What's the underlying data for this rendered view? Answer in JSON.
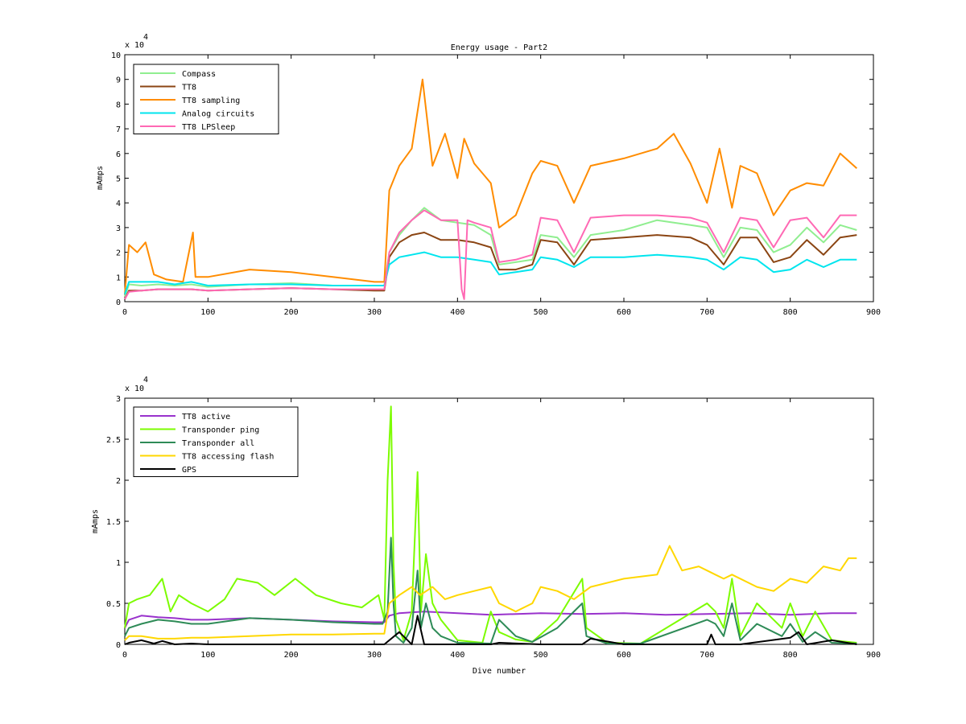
{
  "chart_data": [
    {
      "type": "line",
      "title": "Energy usage - Part2",
      "xlabel": "",
      "ylabel": "mAmps",
      "xlim": [
        0,
        900
      ],
      "ylim": [
        0,
        100000
      ],
      "y_exponent_label": "x 10",
      "y_exponent_power": "4",
      "xticks": [
        0,
        100,
        200,
        300,
        400,
        500,
        600,
        700,
        800,
        900
      ],
      "xtick_labels": [
        "0",
        "100",
        "200",
        "300",
        "400",
        "500",
        "600",
        "700",
        "800",
        "900"
      ],
      "yticks": [
        0,
        10000,
        20000,
        30000,
        40000,
        50000,
        60000,
        70000,
        80000,
        90000,
        100000
      ],
      "ytick_labels": [
        "0",
        "1",
        "2",
        "3",
        "4",
        "5",
        "6",
        "7",
        "8",
        "9",
        "10"
      ],
      "legend_position": "top-left",
      "grid": false,
      "series": [
        {
          "name": "Compass",
          "color": "#90ee90",
          "x": [
            0,
            5,
            20,
            40,
            60,
            80,
            100,
            150,
            200,
            250,
            300,
            312,
            318,
            330,
            345,
            360,
            380,
            400,
            420,
            440,
            450,
            470,
            490,
            500,
            520,
            540,
            560,
            600,
            640,
            680,
            700,
            720,
            740,
            760,
            780,
            800,
            820,
            840,
            860,
            880
          ],
          "y": [
            2000,
            7000,
            6500,
            7000,
            6500,
            7000,
            6000,
            7000,
            7500,
            6500,
            6500,
            6500,
            20000,
            27000,
            33000,
            38000,
            33000,
            32000,
            31000,
            27000,
            15000,
            16000,
            17000,
            27000,
            26000,
            18000,
            27000,
            29000,
            33000,
            31000,
            30000,
            18000,
            30000,
            29000,
            20000,
            23000,
            30000,
            24000,
            31000,
            29000
          ]
        },
        {
          "name": "TT8",
          "color": "#8b4513",
          "x": [
            0,
            5,
            20,
            40,
            60,
            80,
            100,
            150,
            200,
            250,
            300,
            312,
            318,
            330,
            345,
            360,
            380,
            400,
            420,
            440,
            450,
            470,
            490,
            500,
            520,
            540,
            560,
            600,
            640,
            680,
            700,
            720,
            740,
            760,
            780,
            800,
            820,
            840,
            860,
            880
          ],
          "y": [
            1000,
            4500,
            4500,
            5000,
            5000,
            5000,
            4500,
            5000,
            5500,
            5000,
            4500,
            4500,
            18000,
            24000,
            27000,
            28000,
            25000,
            25000,
            24000,
            22000,
            13000,
            13000,
            15000,
            25000,
            24000,
            15000,
            25000,
            26000,
            27000,
            26000,
            23000,
            15000,
            26000,
            26000,
            16000,
            18000,
            25000,
            19000,
            26000,
            27000
          ]
        },
        {
          "name": "TT8 sampling",
          "color": "#ff8c00",
          "x": [
            0,
            5,
            15,
            25,
            35,
            50,
            70,
            82,
            85,
            90,
            100,
            150,
            200,
            250,
            300,
            312,
            318,
            330,
            345,
            358,
            370,
            385,
            400,
            408,
            420,
            440,
            450,
            470,
            490,
            500,
            520,
            540,
            560,
            600,
            640,
            660,
            680,
            700,
            715,
            730,
            740,
            760,
            780,
            800,
            820,
            840,
            860,
            880
          ],
          "y": [
            3000,
            23000,
            20000,
            24000,
            11000,
            9000,
            8000,
            28000,
            10000,
            10000,
            10000,
            13000,
            12000,
            10000,
            8000,
            8000,
            45000,
            55000,
            62000,
            90000,
            55000,
            68000,
            50000,
            66000,
            56000,
            48000,
            30000,
            35000,
            52000,
            57000,
            55000,
            40000,
            55000,
            58000,
            62000,
            68000,
            56000,
            40000,
            62000,
            38000,
            55000,
            52000,
            35000,
            45000,
            48000,
            47000,
            60000,
            54000
          ]
        },
        {
          "name": "Analog circuits",
          "color": "#00e5ee",
          "x": [
            0,
            5,
            20,
            40,
            60,
            80,
            100,
            150,
            200,
            250,
            300,
            312,
            318,
            330,
            345,
            360,
            380,
            400,
            420,
            440,
            450,
            470,
            490,
            500,
            520,
            540,
            560,
            600,
            640,
            680,
            700,
            720,
            740,
            760,
            780,
            800,
            820,
            840,
            860,
            880
          ],
          "y": [
            3000,
            8000,
            8000,
            8000,
            7000,
            8000,
            6500,
            7000,
            7000,
            6500,
            6500,
            6500,
            15000,
            18000,
            19000,
            20000,
            18000,
            18000,
            17000,
            16000,
            11000,
            12000,
            13000,
            18000,
            17000,
            14000,
            18000,
            18000,
            19000,
            18000,
            17000,
            13000,
            18000,
            17000,
            12000,
            13000,
            17000,
            14000,
            17000,
            17000
          ]
        },
        {
          "name": "TT8 LPSleep",
          "color": "#ff69b4",
          "x": [
            0,
            5,
            20,
            40,
            60,
            80,
            100,
            150,
            200,
            250,
            300,
            312,
            318,
            330,
            345,
            360,
            380,
            400,
            405,
            408,
            412,
            420,
            440,
            450,
            470,
            490,
            500,
            520,
            540,
            560,
            600,
            640,
            680,
            700,
            720,
            740,
            760,
            780,
            800,
            820,
            840,
            860,
            880
          ],
          "y": [
            1000,
            4000,
            4500,
            5000,
            5000,
            5000,
            4500,
            5000,
            5500,
            5000,
            5000,
            5000,
            20000,
            28000,
            33000,
            37000,
            33000,
            33000,
            5000,
            1000,
            33000,
            32000,
            30000,
            16000,
            17000,
            19000,
            34000,
            33000,
            20000,
            34000,
            35000,
            35000,
            34000,
            32000,
            20000,
            34000,
            33000,
            22000,
            33000,
            34000,
            26000,
            35000,
            35000
          ]
        }
      ]
    },
    {
      "type": "line",
      "title": "",
      "xlabel": "Dive number",
      "ylabel": "mAmps",
      "xlim": [
        0,
        900
      ],
      "ylim": [
        0,
        30000
      ],
      "y_exponent_label": "x 10",
      "y_exponent_power": "4",
      "xticks": [
        0,
        100,
        200,
        300,
        400,
        500,
        600,
        700,
        800,
        900
      ],
      "xtick_labels": [
        "0",
        "100",
        "200",
        "300",
        "400",
        "500",
        "600",
        "700",
        "800",
        "900"
      ],
      "yticks": [
        0,
        5000,
        10000,
        15000,
        20000,
        25000,
        30000
      ],
      "ytick_labels": [
        "0",
        "0.5",
        "1",
        "1.5",
        "2",
        "2.5",
        "3"
      ],
      "legend_position": "top-left",
      "grid": false,
      "series": [
        {
          "name": "TT8 active",
          "color": "#9932cc",
          "x": [
            0,
            5,
            20,
            40,
            60,
            80,
            100,
            150,
            200,
            250,
            300,
            312,
            318,
            330,
            360,
            400,
            440,
            500,
            550,
            600,
            650,
            700,
            750,
            800,
            850,
            880
          ],
          "y": [
            2000,
            3000,
            3500,
            3300,
            3200,
            3000,
            3000,
            3200,
            3000,
            2800,
            2700,
            2700,
            3500,
            3800,
            4000,
            3800,
            3600,
            3800,
            3700,
            3800,
            3600,
            3700,
            3800,
            3600,
            3800,
            3800
          ]
        },
        {
          "name": "Transponder ping",
          "color": "#7cfc00",
          "x": [
            0,
            5,
            15,
            30,
            45,
            55,
            65,
            80,
            100,
            120,
            135,
            160,
            180,
            205,
            230,
            260,
            285,
            305,
            312,
            316,
            320,
            323,
            326,
            335,
            345,
            352,
            356,
            362,
            370,
            380,
            400,
            430,
            440,
            450,
            470,
            490,
            520,
            550,
            555,
            580,
            620,
            700,
            710,
            720,
            730,
            740,
            760,
            790,
            800,
            815,
            830,
            850,
            880
          ],
          "y": [
            2000,
            5000,
            5500,
            6000,
            8000,
            4000,
            6000,
            5000,
            4000,
            5500,
            8000,
            7500,
            6000,
            8000,
            6000,
            5000,
            4500,
            6000,
            3000,
            20000,
            29000,
            10000,
            3000,
            500,
            4000,
            21000,
            4000,
            11000,
            5000,
            3000,
            500,
            200,
            4000,
            1500,
            600,
            300,
            3000,
            8000,
            2000,
            200,
            100,
            5000,
            4000,
            2000,
            8000,
            1000,
            5000,
            2000,
            5000,
            1000,
            4000,
            500,
            200
          ]
        },
        {
          "name": "Transponder all",
          "color": "#2e8b57",
          "x": [
            0,
            5,
            20,
            40,
            60,
            80,
            100,
            150,
            200,
            250,
            300,
            310,
            316,
            320,
            323,
            326,
            335,
            345,
            352,
            356,
            362,
            370,
            380,
            400,
            440,
            450,
            470,
            490,
            520,
            550,
            555,
            580,
            620,
            700,
            710,
            720,
            730,
            740,
            760,
            790,
            800,
            815,
            830,
            850,
            880
          ],
          "y": [
            1000,
            2000,
            2500,
            3000,
            2800,
            2500,
            2500,
            3200,
            3000,
            2700,
            2500,
            2500,
            4000,
            13000,
            5000,
            1000,
            200,
            2000,
            9000,
            2000,
            5000,
            2000,
            1000,
            200,
            100,
            3000,
            1000,
            300,
            2000,
            5000,
            1000,
            100,
            100,
            3000,
            2500,
            1000,
            5000,
            500,
            2500,
            1000,
            2500,
            300,
            1500,
            200,
            100
          ]
        },
        {
          "name": "TT8 accessing flash",
          "color": "#ffd700",
          "x": [
            0,
            5,
            20,
            40,
            60,
            80,
            100,
            150,
            200,
            250,
            300,
            312,
            318,
            330,
            345,
            355,
            370,
            385,
            400,
            420,
            440,
            450,
            470,
            490,
            500,
            520,
            540,
            560,
            600,
            640,
            655,
            670,
            690,
            700,
            720,
            730,
            760,
            780,
            800,
            820,
            840,
            860,
            870,
            880
          ],
          "y": [
            500,
            1000,
            1000,
            700,
            700,
            800,
            800,
            1000,
            1200,
            1200,
            1300,
            1300,
            5000,
            6000,
            7000,
            6000,
            7000,
            5500,
            6000,
            6500,
            7000,
            5000,
            4000,
            5000,
            7000,
            6500,
            5500,
            7000,
            8000,
            8500,
            12000,
            9000,
            9500,
            9000,
            8000,
            8500,
            7000,
            6500,
            8000,
            7500,
            9500,
            9000,
            10500,
            10500
          ]
        },
        {
          "name": "GPS",
          "color": "#000000",
          "x": [
            0,
            5,
            20,
            35,
            45,
            60,
            80,
            100,
            200,
            300,
            312,
            330,
            345,
            352,
            360,
            400,
            440,
            450,
            500,
            550,
            560,
            600,
            650,
            700,
            705,
            710,
            740,
            800,
            810,
            820,
            850,
            880
          ],
          "y": [
            0,
            200,
            500,
            100,
            400,
            0,
            100,
            0,
            0,
            0,
            0,
            1500,
            0,
            3500,
            0,
            0,
            0,
            200,
            0,
            0,
            700,
            0,
            0,
            0,
            1200,
            0,
            0,
            800,
            1500,
            0,
            500,
            0
          ]
        }
      ]
    }
  ]
}
